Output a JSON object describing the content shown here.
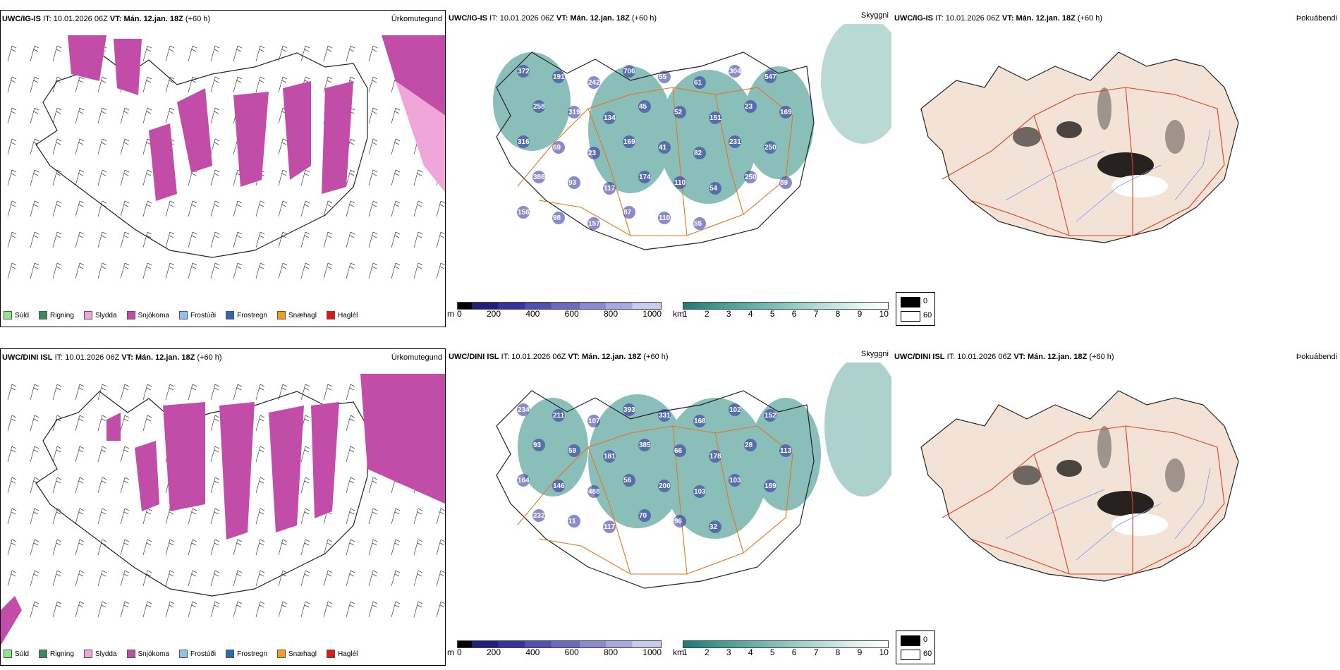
{
  "colors": {
    "snow": "#c24da8",
    "sleet": "#f0a6d8",
    "teal": "#2a8a80",
    "deepblue": "#2c2ca0",
    "road": "#e8741e",
    "land": "#f3e3d7",
    "river": "#8090ee"
  },
  "models": [
    {
      "model": "UWC/IG-IS",
      "it_label": "IT:",
      "it": "10.01.2026 06Z",
      "vt_label": "VT:",
      "vt": "Mán. 12.jan. 18Z",
      "lead": "(+60 h)",
      "ceiling_values": [
        "372",
        "191",
        "242",
        "706",
        "55",
        "61",
        "304",
        "547",
        "258",
        "319",
        "134",
        "45",
        "52",
        "151",
        "23",
        "169",
        "316",
        "69",
        "23",
        "169",
        "41",
        "82",
        "231",
        "250",
        "386",
        "93",
        "117",
        "174",
        "110",
        "54",
        "250",
        "89",
        "156",
        "98",
        "157",
        "87",
        "110",
        "55"
      ]
    },
    {
      "model": "UWC/DINI ISL",
      "it_label": "IT:",
      "it": "10.01.2026 06Z",
      "vt_label": "VT:",
      "vt": "Mán. 12.jan. 18Z",
      "lead": "(+60 h)",
      "ceiling_values": [
        "234",
        "211",
        "107",
        "393",
        "331",
        "168",
        "102",
        "152",
        "93",
        "59",
        "181",
        "385",
        "66",
        "178",
        "28",
        "113",
        "164",
        "146",
        "488",
        "56",
        "200",
        "103",
        "103",
        "189",
        "232",
        "11",
        "117",
        "70",
        "96",
        "32"
      ]
    }
  ],
  "panel_labels": {
    "precip": "Úrkomutegund",
    "cloud": "Skyggni",
    "fog": "Þokuábendi"
  },
  "precip_legend": [
    {
      "label": "Súld",
      "color": "#8de88d"
    },
    {
      "label": "Rigning",
      "color": "#3d8a5a"
    },
    {
      "label": "Slydda",
      "color": "#f0a6d8"
    },
    {
      "label": "Snjókoma",
      "color": "#c24da8"
    },
    {
      "label": "Frostúði",
      "color": "#8ec0f0"
    },
    {
      "label": "Frostregn",
      "color": "#2e6ab0"
    },
    {
      "label": "Snæhagl",
      "color": "#f0a020"
    },
    {
      "label": "Haglél",
      "color": "#e01818"
    }
  ],
  "ceiling_scale": {
    "unit": "m",
    "ticks": [
      "0",
      "200",
      "400",
      "600",
      "800",
      "1000"
    ]
  },
  "visibility_scale": {
    "unit": "km",
    "ticks": [
      "1",
      "2",
      "3",
      "4",
      "5",
      "6",
      "7",
      "8",
      "9",
      "10"
    ]
  },
  "fog_legend": {
    "high": "0",
    "low": "60"
  }
}
